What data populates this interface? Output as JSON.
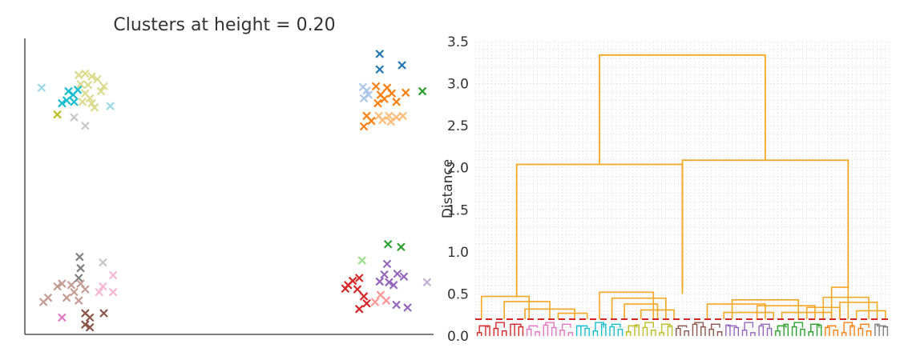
{
  "chart_data": [
    {
      "type": "scatter",
      "title": "Clusters at height = 0.20",
      "xlabel": "",
      "ylabel": "",
      "xlim": [
        -2.2,
        2.2
      ],
      "ylim": [
        -2.1,
        2.1
      ],
      "axes": "left and bottom spines only, no ticks",
      "marker": "x",
      "points": [
        {
          "x": -2.02,
          "y": 1.4,
          "c": "#9edae5"
        },
        {
          "x": -1.62,
          "y": 1.58,
          "c": "#dbdb8d"
        },
        {
          "x": -1.55,
          "y": 1.6,
          "c": "#dbdb8d"
        },
        {
          "x": -1.48,
          "y": 1.56,
          "c": "#dbdb8d"
        },
        {
          "x": -1.6,
          "y": 1.45,
          "c": "#dbdb8d"
        },
        {
          "x": -1.52,
          "y": 1.44,
          "c": "#dbdb8d"
        },
        {
          "x": -1.35,
          "y": 1.42,
          "c": "#dbdb8d"
        },
        {
          "x": -1.42,
          "y": 1.52,
          "c": "#dbdb8d"
        },
        {
          "x": -1.55,
          "y": 1.32,
          "c": "#dbdb8d"
        },
        {
          "x": -1.5,
          "y": 1.25,
          "c": "#dbdb8d"
        },
        {
          "x": -1.58,
          "y": 1.2,
          "c": "#dbdb8d"
        },
        {
          "x": -1.48,
          "y": 1.18,
          "c": "#dbdb8d"
        },
        {
          "x": -1.38,
          "y": 1.35,
          "c": "#dbdb8d"
        },
        {
          "x": -1.45,
          "y": 1.12,
          "c": "#dbdb8d"
        },
        {
          "x": -1.73,
          "y": 1.35,
          "c": "#17becf"
        },
        {
          "x": -1.68,
          "y": 1.3,
          "c": "#17becf"
        },
        {
          "x": -1.75,
          "y": 1.22,
          "c": "#17becf"
        },
        {
          "x": -1.67,
          "y": 1.2,
          "c": "#17becf"
        },
        {
          "x": -1.8,
          "y": 1.18,
          "c": "#17becf"
        },
        {
          "x": -1.63,
          "y": 1.37,
          "c": "#17becf"
        },
        {
          "x": -1.28,
          "y": 1.14,
          "c": "#9edae5"
        },
        {
          "x": -1.85,
          "y": 1.02,
          "c": "#bcbd22"
        },
        {
          "x": -1.67,
          "y": 0.98,
          "c": "#c7c7c7"
        },
        {
          "x": -1.55,
          "y": 0.86,
          "c": "#c7c7c7"
        },
        {
          "x": -1.61,
          "y": -1.0,
          "c": "#7f7f7f"
        },
        {
          "x": -1.6,
          "y": -1.16,
          "c": "#7f7f7f"
        },
        {
          "x": -1.62,
          "y": -1.3,
          "c": "#7f7f7f"
        },
        {
          "x": -1.7,
          "y": -1.4,
          "c": "#c49c94"
        },
        {
          "x": -1.8,
          "y": -1.38,
          "c": "#c49c94"
        },
        {
          "x": -1.85,
          "y": -1.42,
          "c": "#c49c94"
        },
        {
          "x": -1.6,
          "y": -1.38,
          "c": "#c49c94"
        },
        {
          "x": -1.55,
          "y": -1.46,
          "c": "#c49c94"
        },
        {
          "x": -1.67,
          "y": -1.5,
          "c": "#c49c94"
        },
        {
          "x": -1.75,
          "y": -1.58,
          "c": "#c49c94"
        },
        {
          "x": -1.95,
          "y": -1.58,
          "c": "#c49c94"
        },
        {
          "x": -2.0,
          "y": -1.64,
          "c": "#c49c94"
        },
        {
          "x": -1.62,
          "y": -1.62,
          "c": "#c49c94"
        },
        {
          "x": -1.36,
          "y": -1.08,
          "c": "#c7c7c7"
        },
        {
          "x": -1.25,
          "y": -1.26,
          "c": "#f7b6d2"
        },
        {
          "x": -1.36,
          "y": -1.42,
          "c": "#f7b6d2"
        },
        {
          "x": -1.4,
          "y": -1.5,
          "c": "#f7b6d2"
        },
        {
          "x": -1.25,
          "y": -1.5,
          "c": "#f7b6d2"
        },
        {
          "x": -1.8,
          "y": -1.86,
          "c": "#e377c2"
        },
        {
          "x": -1.55,
          "y": -1.8,
          "c": "#8c564b"
        },
        {
          "x": -1.5,
          "y": -1.86,
          "c": "#8c564b"
        },
        {
          "x": -1.35,
          "y": -1.8,
          "c": "#8c564b"
        },
        {
          "x": -1.55,
          "y": -1.96,
          "c": "#8c564b"
        },
        {
          "x": -1.5,
          "y": -2.0,
          "c": "#8c564b"
        },
        {
          "x": 1.62,
          "y": 1.88,
          "c": "#1f77b4"
        },
        {
          "x": 1.62,
          "y": 1.66,
          "c": "#1f77b4"
        },
        {
          "x": 1.86,
          "y": 1.72,
          "c": "#1f77b4"
        },
        {
          "x": 1.44,
          "y": 1.41,
          "c": "#aec7e8"
        },
        {
          "x": 1.48,
          "y": 1.36,
          "c": "#aec7e8"
        },
        {
          "x": 1.5,
          "y": 1.3,
          "c": "#aec7e8"
        },
        {
          "x": 1.45,
          "y": 1.25,
          "c": "#aec7e8"
        },
        {
          "x": 1.58,
          "y": 1.42,
          "c": "#ff7f0e"
        },
        {
          "x": 1.7,
          "y": 1.4,
          "c": "#ff7f0e"
        },
        {
          "x": 1.63,
          "y": 1.3,
          "c": "#ff7f0e"
        },
        {
          "x": 1.75,
          "y": 1.32,
          "c": "#ff7f0e"
        },
        {
          "x": 1.67,
          "y": 1.24,
          "c": "#ff7f0e"
        },
        {
          "x": 1.8,
          "y": 1.2,
          "c": "#ff7f0e"
        },
        {
          "x": 1.9,
          "y": 1.33,
          "c": "#ff7f0e"
        },
        {
          "x": 1.6,
          "y": 1.18,
          "c": "#ff7f0e"
        },
        {
          "x": 1.48,
          "y": 1.0,
          "c": "#ff7f0e"
        },
        {
          "x": 1.53,
          "y": 0.93,
          "c": "#ff7f0e"
        },
        {
          "x": 1.45,
          "y": 0.85,
          "c": "#ff7f0e"
        },
        {
          "x": 1.61,
          "y": 1.0,
          "c": "#ffbb78"
        },
        {
          "x": 1.72,
          "y": 1.0,
          "c": "#ffbb78"
        },
        {
          "x": 1.8,
          "y": 0.98,
          "c": "#ffbb78"
        },
        {
          "x": 1.87,
          "y": 1.0,
          "c": "#ffbb78"
        },
        {
          "x": 1.65,
          "y": 0.94,
          "c": "#ffbb78"
        },
        {
          "x": 1.74,
          "y": 0.92,
          "c": "#ffbb78"
        },
        {
          "x": 2.08,
          "y": 1.35,
          "c": "#2ca02c"
        },
        {
          "x": 1.71,
          "y": -0.82,
          "c": "#2ca02c"
        },
        {
          "x": 1.85,
          "y": -0.86,
          "c": "#2ca02c"
        },
        {
          "x": 1.43,
          "y": -1.05,
          "c": "#98df8a"
        },
        {
          "x": 1.7,
          "y": -1.1,
          "c": "#9467bd"
        },
        {
          "x": 1.67,
          "y": -1.25,
          "c": "#9467bd"
        },
        {
          "x": 1.81,
          "y": -1.24,
          "c": "#9467bd"
        },
        {
          "x": 1.62,
          "y": -1.35,
          "c": "#9467bd"
        },
        {
          "x": 1.72,
          "y": -1.36,
          "c": "#9467bd"
        },
        {
          "x": 1.88,
          "y": -1.28,
          "c": "#9467bd"
        },
        {
          "x": 1.77,
          "y": -1.4,
          "c": "#9467bd"
        },
        {
          "x": 1.8,
          "y": -1.68,
          "c": "#9467bd"
        },
        {
          "x": 1.92,
          "y": -1.72,
          "c": "#9467bd"
        },
        {
          "x": 2.13,
          "y": -1.36,
          "c": "#c5b0d5"
        },
        {
          "x": 1.28,
          "y": -1.4,
          "c": "#d62728"
        },
        {
          "x": 1.33,
          "y": -1.34,
          "c": "#d62728"
        },
        {
          "x": 1.4,
          "y": -1.3,
          "c": "#d62728"
        },
        {
          "x": 1.25,
          "y": -1.45,
          "c": "#d62728"
        },
        {
          "x": 1.38,
          "y": -1.46,
          "c": "#d62728"
        },
        {
          "x": 1.45,
          "y": -1.56,
          "c": "#d62728"
        },
        {
          "x": 1.48,
          "y": -1.66,
          "c": "#d62728"
        },
        {
          "x": 1.4,
          "y": -1.74,
          "c": "#d62728"
        },
        {
          "x": 1.63,
          "y": -1.54,
          "c": "#ff9896"
        },
        {
          "x": 1.57,
          "y": -1.64,
          "c": "#ff9896"
        },
        {
          "x": 1.69,
          "y": -1.62,
          "c": "#ff9896"
        }
      ]
    },
    {
      "type": "dendrogram",
      "ylabel": "Distance",
      "xlabel": "",
      "ylim": [
        0,
        3.5
      ],
      "yticks": [
        "0.0",
        "0.5",
        "1.0",
        "1.5",
        "2.0",
        "2.5",
        "3.0",
        "3.5"
      ],
      "grid": true,
      "cut_height": 0.2,
      "cut_color": "#d62728",
      "above_cut_color": "#f5a623",
      "n_leaves": 100,
      "top_merges": [
        {
          "left": [
            0.1,
            0.47
          ],
          "right": [
            0.5,
            0.5
          ],
          "height": 2.04
        },
        {
          "left": [
            0.5,
            0.58
          ],
          "right": [
            0.9,
            0.57
          ],
          "height": 2.09
        },
        {
          "left": [
            0.3,
            2.04
          ],
          "right": [
            0.7,
            2.09
          ],
          "height": 3.34
        }
      ],
      "mid_merges": [
        {
          "x": [
            0.015,
            0.13
          ],
          "height": 0.47
        },
        {
          "x": [
            0.07,
            0.18
          ],
          "height": 0.41
        },
        {
          "x": [
            0.12,
            0.24
          ],
          "height": 0.32
        },
        {
          "x": [
            0.2,
            0.27
          ],
          "height": 0.27
        },
        {
          "x": [
            0.3,
            0.43
          ],
          "height": 0.52
        },
        {
          "x": [
            0.33,
            0.46
          ],
          "height": 0.45
        },
        {
          "x": [
            0.36,
            0.44
          ],
          "height": 0.38
        },
        {
          "x": [
            0.4,
            0.48
          ],
          "height": 0.31
        },
        {
          "x": [
            0.56,
            0.7
          ],
          "height": 0.38
        },
        {
          "x": [
            0.62,
            0.78
          ],
          "height": 0.43
        },
        {
          "x": [
            0.68,
            0.82
          ],
          "height": 0.36
        },
        {
          "x": [
            0.6,
            0.72
          ],
          "height": 0.28
        },
        {
          "x": [
            0.74,
            0.86
          ],
          "height": 0.28
        },
        {
          "x": [
            0.86,
            0.9
          ],
          "height": 0.58
        },
        {
          "x": [
            0.84,
            0.95
          ],
          "height": 0.46
        },
        {
          "x": [
            0.88,
            0.97
          ],
          "height": 0.4
        },
        {
          "x": [
            0.92,
            0.99
          ],
          "height": 0.3
        },
        {
          "x": [
            0.8,
            0.88
          ],
          "height": 0.34
        }
      ],
      "cluster_colors": [
        "#d62728",
        "#e377c2",
        "#17becf",
        "#bcbd22",
        "#8c564b",
        "#9467bd",
        "#2ca02c",
        "#ff7f0e",
        "#7f7f7f"
      ]
    }
  ]
}
